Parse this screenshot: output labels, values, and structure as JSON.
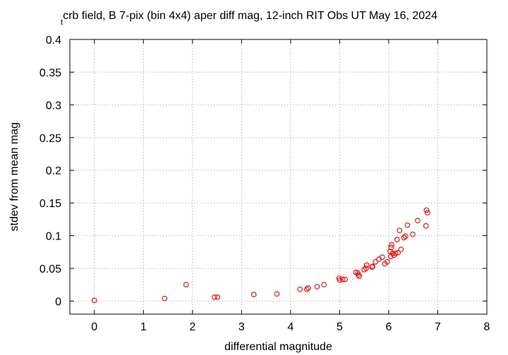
{
  "chart_data": {
    "type": "scatter",
    "title": "crb field, B 7-pix (bin 4x4) aper diff mag,  12-inch RIT Obs UT May 16, 2024",
    "title_prefix": "t",
    "xlabel": "differential magnitude",
    "ylabel": "stdev from mean mag",
    "xlim": [
      -0.5,
      8
    ],
    "ylim": [
      -0.02,
      0.4
    ],
    "xticks": [
      {
        "value": 0,
        "label": "0"
      },
      {
        "value": 1,
        "label": "1"
      },
      {
        "value": 2,
        "label": "2"
      },
      {
        "value": 3,
        "label": "3"
      },
      {
        "value": 4,
        "label": "4"
      },
      {
        "value": 5,
        "label": "5"
      },
      {
        "value": 6,
        "label": "6"
      },
      {
        "value": 7,
        "label": "7"
      },
      {
        "value": 8,
        "label": "8"
      }
    ],
    "yticks": [
      {
        "value": 0,
        "label": "0"
      },
      {
        "value": 0.05,
        "label": "0.05"
      },
      {
        "value": 0.1,
        "label": "0.1"
      },
      {
        "value": 0.15,
        "label": "0.15"
      },
      {
        "value": 0.2,
        "label": "0.2"
      },
      {
        "value": 0.25,
        "label": "0.25"
      },
      {
        "value": 0.3,
        "label": "0.3"
      },
      {
        "value": 0.35,
        "label": "0.35"
      },
      {
        "value": 0.4,
        "label": "0.4"
      }
    ],
    "grid": true,
    "marker_color": "#ff0000",
    "series": [
      {
        "x": [
          0.0,
          1.43,
          1.87,
          2.45,
          2.51,
          3.25,
          3.72,
          4.19,
          4.33,
          4.36,
          4.54,
          4.68,
          4.99,
          5.0,
          5.06,
          5.11,
          5.33,
          5.37,
          5.38,
          5.4,
          5.5,
          5.54,
          5.55,
          5.66,
          5.67,
          5.73,
          5.8,
          5.87,
          5.92,
          5.97,
          6.03,
          6.04,
          6.05,
          6.06,
          6.08,
          6.11,
          6.14,
          6.17,
          6.19,
          6.22,
          6.25,
          6.31,
          6.34,
          6.38,
          6.49,
          6.59,
          6.76,
          6.77,
          6.79
        ],
        "y": [
          0.001,
          0.004,
          0.025,
          0.006,
          0.006,
          0.01,
          0.011,
          0.018,
          0.018,
          0.02,
          0.022,
          0.025,
          0.035,
          0.032,
          0.033,
          0.033,
          0.044,
          0.043,
          0.04,
          0.038,
          0.048,
          0.05,
          0.055,
          0.052,
          0.053,
          0.06,
          0.064,
          0.067,
          0.057,
          0.06,
          0.076,
          0.068,
          0.082,
          0.086,
          0.073,
          0.07,
          0.073,
          0.094,
          0.074,
          0.108,
          0.079,
          0.097,
          0.099,
          0.116,
          0.102,
          0.123,
          0.115,
          0.139,
          0.135
        ]
      }
    ]
  }
}
